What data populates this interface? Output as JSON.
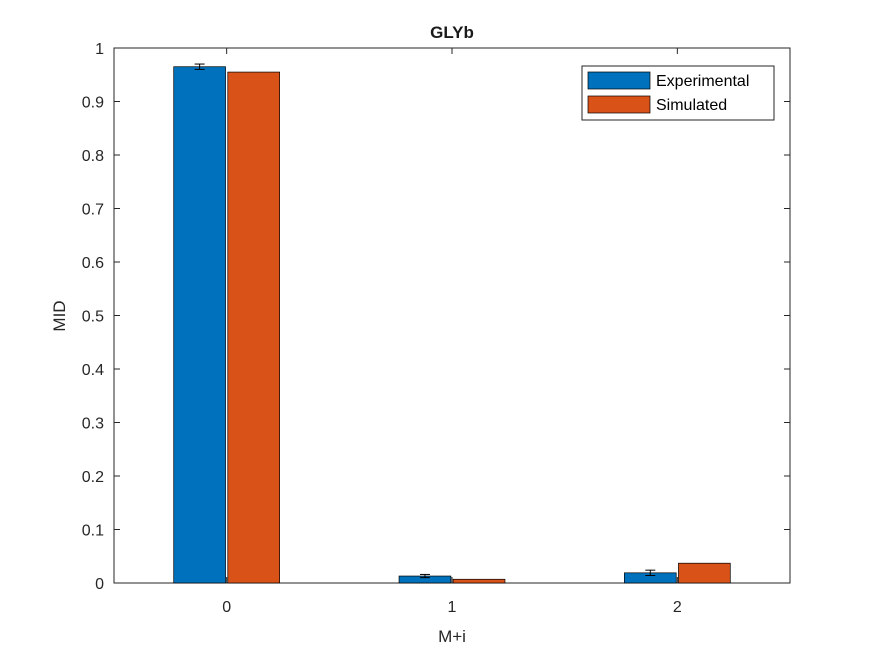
{
  "chart_data": {
    "type": "bar",
    "title": "GLYb",
    "xlabel": "M+i",
    "ylabel": "MID",
    "categories": [
      "0",
      "1",
      "2"
    ],
    "series": [
      {
        "name": "Experimental",
        "color": "#0072BD",
        "values": [
          0.965,
          0.013,
          0.019
        ],
        "errors": [
          0.005,
          0.003,
          0.005
        ]
      },
      {
        "name": "Simulated",
        "color": "#D95319",
        "values": [
          0.955,
          0.007,
          0.037
        ]
      }
    ],
    "ylim": [
      0,
      1
    ],
    "yticks": [
      0,
      0.1,
      0.2,
      0.3,
      0.4,
      0.5,
      0.6,
      0.7,
      0.8,
      0.9,
      1
    ],
    "ytick_labels": [
      "0",
      "0.1",
      "0.2",
      "0.3",
      "0.4",
      "0.5",
      "0.6",
      "0.7",
      "0.8",
      "0.9",
      "1"
    ],
    "grid": false,
    "legend_position": "top-right"
  }
}
